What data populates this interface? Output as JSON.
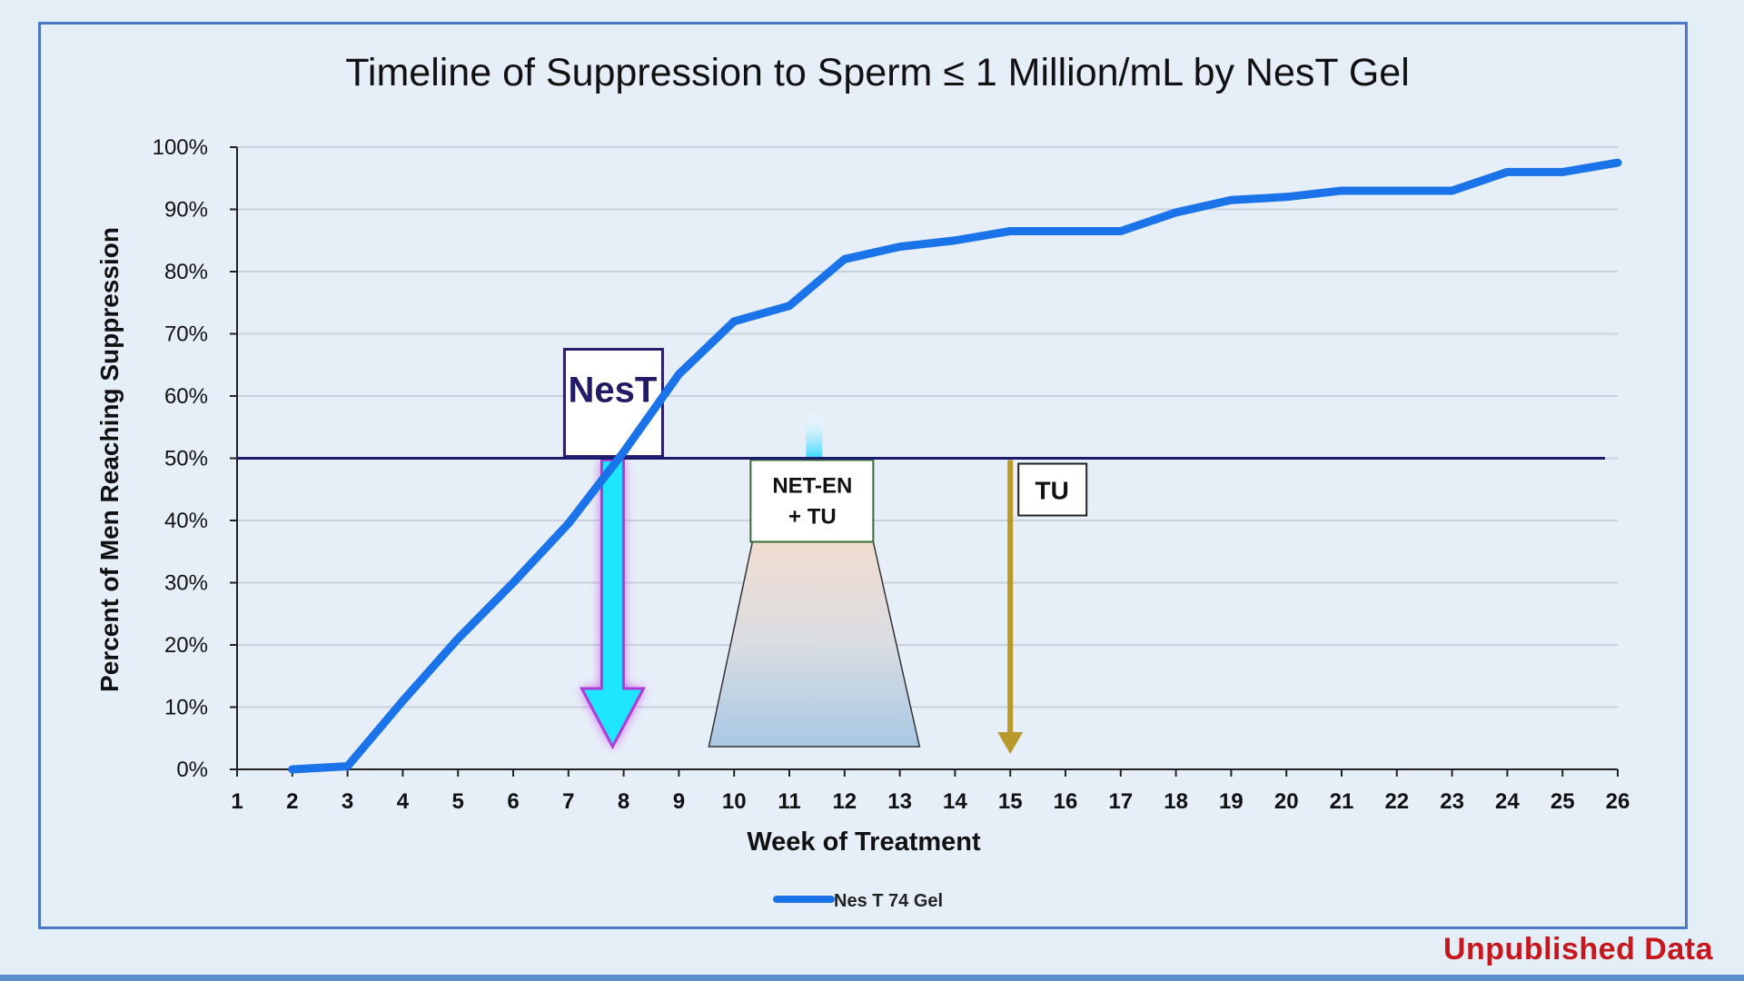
{
  "watermark": "Unpublished Data",
  "colors": {
    "series": "#1a73e8",
    "reference_line": "#1c1a6e",
    "nest_arrow": "#1ee6ff",
    "nest_glow": "#c640e8",
    "tu_arrow": "#b89a2c"
  },
  "chart_data": {
    "type": "line",
    "title": "Timeline of Suppression to Sperm ≤ 1 Million/mL by NesT Gel",
    "xlabel": "Week of Treatment",
    "ylabel": "Percent of Men Reaching Suppression",
    "xlim": [
      1,
      26
    ],
    "ylim": [
      0,
      100
    ],
    "x_ticks": [
      1,
      2,
      3,
      4,
      5,
      6,
      7,
      8,
      9,
      10,
      11,
      12,
      13,
      14,
      15,
      16,
      17,
      18,
      19,
      20,
      21,
      22,
      23,
      24,
      25,
      26
    ],
    "y_ticks": [
      "0%",
      "10%",
      "20%",
      "30%",
      "40%",
      "50%",
      "60%",
      "70%",
      "80%",
      "90%",
      "100%"
    ],
    "grid": true,
    "legend_position": "bottom-center",
    "reference_line": {
      "y": 50
    },
    "series": [
      {
        "name": "Nes T 74 Gel",
        "x": [
          2,
          3,
          4,
          5,
          6,
          7,
          8,
          9,
          10,
          11,
          12,
          13,
          14,
          15,
          16,
          17,
          18,
          19,
          20,
          21,
          22,
          23,
          24,
          25,
          26
        ],
        "y": [
          0,
          0.5,
          11,
          21,
          30,
          39.5,
          51,
          63.5,
          72,
          74.5,
          82,
          84,
          85,
          86.5,
          86.5,
          86.5,
          89.5,
          91.5,
          92,
          93,
          93,
          93,
          96,
          96,
          97.5
        ]
      }
    ],
    "annotations": [
      {
        "id": "nest",
        "label": "NesT",
        "x": 7.8,
        "kind": "arrow-down"
      },
      {
        "id": "net-en",
        "label_lines": [
          "NET-EN",
          "+ TU"
        ],
        "x": 11.45,
        "kind": "trapezoid"
      },
      {
        "id": "tu",
        "label": "TU",
        "x": 15,
        "kind": "arrow-down"
      }
    ]
  }
}
